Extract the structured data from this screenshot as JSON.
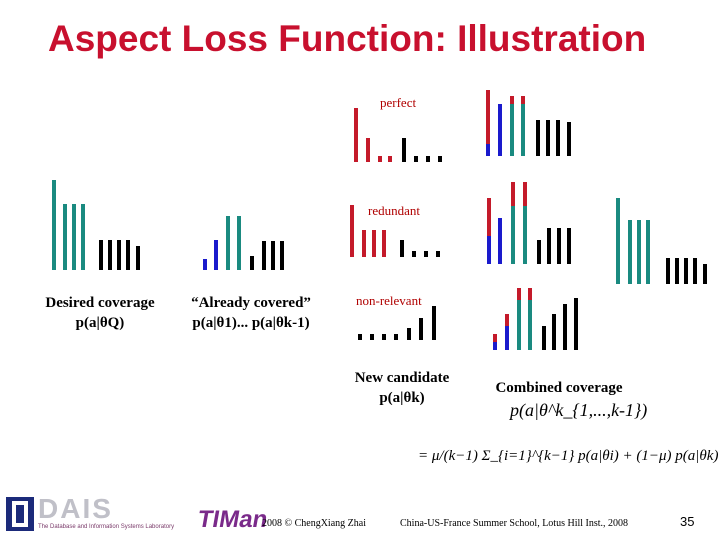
{
  "slide": {
    "title": "Aspect Loss Function: Illustration",
    "page_number": "35"
  },
  "labels": {
    "perfect": "perfect",
    "redundant": "redundant",
    "non_relevant": "non-relevant",
    "desired_coverage": "Desired coverage",
    "desired_coverage_formula": "p(a|θQ)",
    "already_covered": "“Already covered”",
    "already_covered_formula": "p(a|θ1)... p(a|θk-1)",
    "new_candidate": "New candidate",
    "new_candidate_formula": "p(a|θk)",
    "combined_coverage": "Combined coverage",
    "combined_formula": "p(a|θ^k_{1,...,k-1})",
    "sum_formula": "= μ/(k−1) Σ_{i=1}^{k−1} p(a|θi) + (1−μ) p(a|θk)"
  },
  "footer": {
    "copyright": "2008 © ChengXiang Zhai",
    "event": "China-US-France Summer School, Lotus Hill Inst., 2008",
    "dais_logo": "DAIS",
    "dais_subtitle": "The Database and Information Systems Laboratory",
    "timan_logo": "TIMan"
  },
  "colors": {
    "teal": "#1a8a80",
    "black": "#000000",
    "blue": "#1a1acc",
    "red": "#c41a2a",
    "title_red": "#c8102e"
  }
}
